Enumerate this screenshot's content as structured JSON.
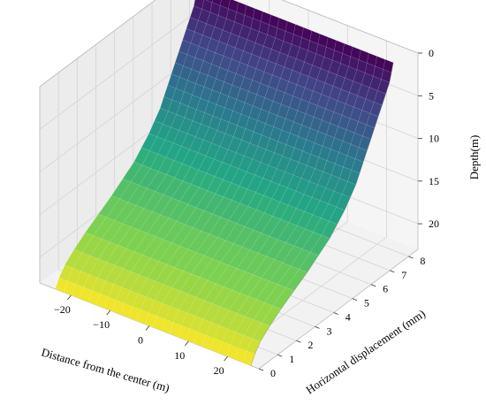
{
  "chart_data": {
    "type": "surface3d",
    "xlabel": "Distance from the center (m)",
    "ylabel": "Horizontal displacement (mm)",
    "zlabel": "Depth(m)",
    "x_ticks": [
      -20,
      -10,
      0,
      10,
      20
    ],
    "y_ticks": [
      0,
      1,
      2,
      3,
      4,
      5,
      6,
      7,
      8
    ],
    "z_ticks": [
      0,
      5,
      10,
      15,
      20
    ],
    "xlim": [
      -28,
      28
    ],
    "ylim": [
      0,
      8.5
    ],
    "zlim": [
      0,
      23
    ],
    "z_inverted": true,
    "colormap": "viridis",
    "grid": true,
    "surface_summary": "horizontal displacement vs depth profile, extruded along distance from the center",
    "depth": [
      0,
      1,
      2,
      3,
      4,
      5,
      6,
      7,
      8,
      9,
      10,
      11,
      12,
      13,
      14,
      15,
      16,
      17,
      18,
      19,
      20,
      21,
      22,
      23
    ],
    "displacement_mm": [
      7.6,
      7.5,
      7.4,
      7.2,
      7.0,
      6.8,
      6.6,
      6.4,
      6.2,
      6.0,
      5.8,
      5.6,
      5.3,
      5.0,
      4.6,
      4.2,
      3.6,
      3.0,
      2.3,
      1.6,
      1.0,
      0.5,
      0.2,
      0.0
    ]
  }
}
